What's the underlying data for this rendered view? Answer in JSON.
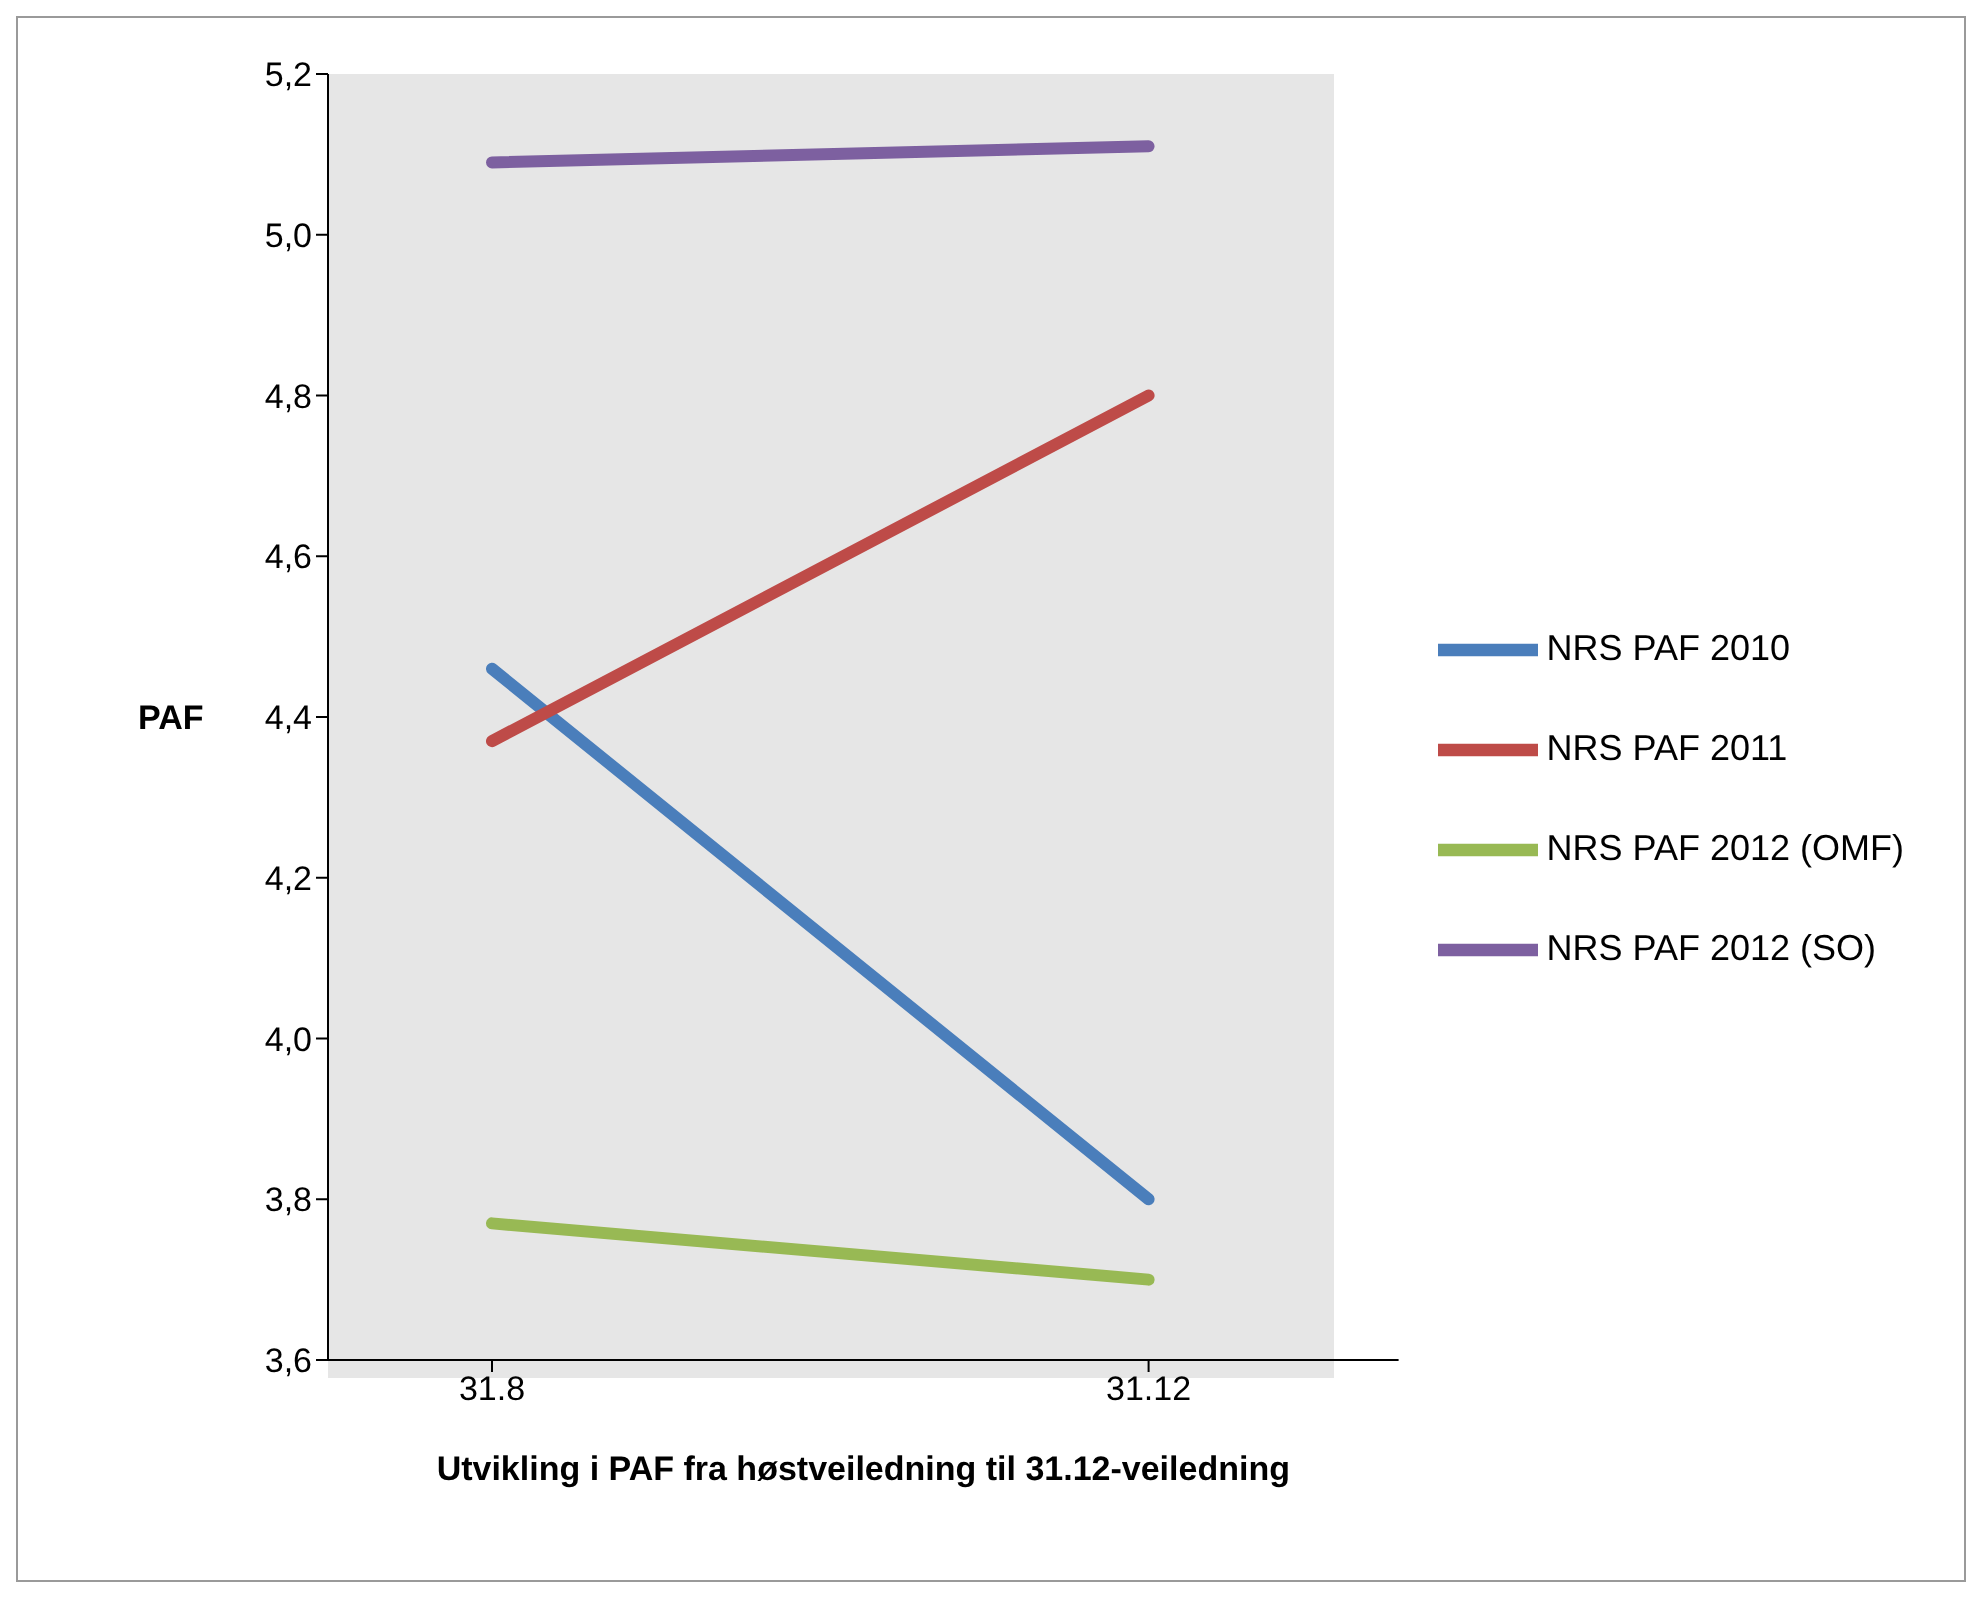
{
  "chart_data": {
    "type": "line",
    "xlabel": "Utvikling i PAF fra høstveiledning til 31.12-veiledning",
    "ylabel": "PAF",
    "categories": [
      "31.8",
      "31.12"
    ],
    "series": [
      {
        "name": "NRS PAF 2010",
        "color": "#4a7ebb",
        "values": [
          4.46,
          3.8
        ]
      },
      {
        "name": "NRS PAF 2011",
        "color": "#be4b48",
        "values": [
          4.37,
          4.8
        ]
      },
      {
        "name": "NRS PAF 2012 (OMF)",
        "color": "#98b954",
        "values": [
          3.77,
          3.7
        ]
      },
      {
        "name": "NRS PAF 2012 (SO)",
        "color": "#7d60a0",
        "values": [
          5.09,
          5.11
        ]
      }
    ],
    "ylim": [
      3.6,
      5.2
    ],
    "yticks": [
      {
        "value": 3.6,
        "label": "3,6"
      },
      {
        "value": 3.8,
        "label": "3,8"
      },
      {
        "value": 4.0,
        "label": "4,0"
      },
      {
        "value": 4.2,
        "label": "4,2"
      },
      {
        "value": 4.4,
        "label": "4,4"
      },
      {
        "value": 4.6,
        "label": "4,6"
      },
      {
        "value": 4.8,
        "label": "4,8"
      },
      {
        "value": 5.0,
        "label": "5,0"
      },
      {
        "value": 5.2,
        "label": "5,2"
      }
    ],
    "grid": false,
    "legend": "right",
    "marker": "none",
    "line_style": "solid"
  }
}
